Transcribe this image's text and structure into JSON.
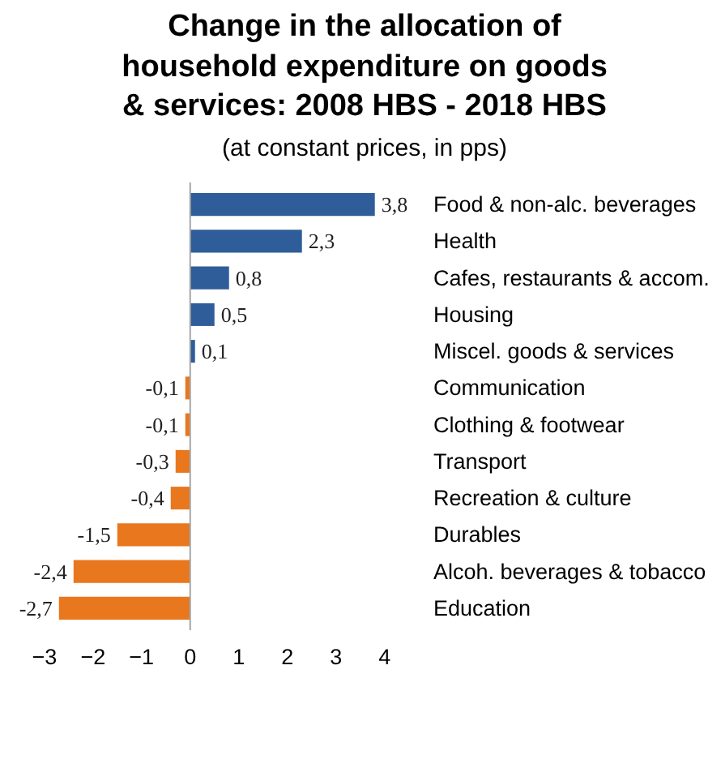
{
  "chart_data": {
    "type": "bar",
    "orientation": "horizontal",
    "title": "Change in the allocation of\nhousehold expenditure on goods\n& services: 2008 HBS - 2018 HBS",
    "subtitle": "(at constant prices, in pps)",
    "categories": [
      "Food & non-alc. beverages",
      "Health",
      "Cafes, restaurants & accom.",
      "Housing",
      "Miscel. goods & services",
      "Communication",
      "Clothing & footwear",
      "Transport",
      "Recreation & culture",
      "Durables",
      "Alcoh. beverages & tobacco",
      "Education"
    ],
    "values": [
      3.8,
      2.3,
      0.8,
      0.5,
      0.1,
      -0.1,
      -0.1,
      -0.3,
      -0.4,
      -1.5,
      -2.4,
      -2.7
    ],
    "value_labels": [
      "3,8",
      "2,3",
      "0,8",
      "0,5",
      "0,1",
      "-0,1",
      "-0,1",
      "-0,3",
      "-0,4",
      "-1,5",
      "-2,4",
      "-2,7"
    ],
    "colors": [
      "#2f5d9a",
      "#2f5d9a",
      "#2f5d9a",
      "#2f5d9a",
      "#2f5d9a",
      "#e8771e",
      "#e8771e",
      "#e8771e",
      "#e8771e",
      "#e8771e",
      "#e8771e",
      "#e8771e"
    ],
    "ref_lines": [
      {
        "axis": "x",
        "value": 0,
        "color": "#a6a6a6"
      }
    ],
    "xlim": [
      -3,
      4
    ],
    "xticks": [
      -3,
      -2,
      -1,
      0,
      1,
      2,
      3,
      4
    ],
    "grid": false
  }
}
